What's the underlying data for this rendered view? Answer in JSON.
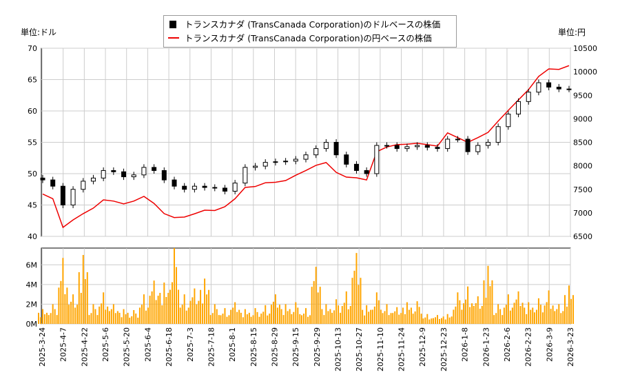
{
  "chart_data": {
    "type": "line",
    "left_unit": "単位:ドル",
    "right_unit": "単位:円",
    "legend": [
      "トランスカナダ (TransCanada Corporation)のドルベースの株価",
      "トランスカナダ (TransCanada Corporation)の円ベースの株価"
    ],
    "legend_placement": "top-center",
    "grid": true,
    "colors": {
      "usd": "#000000",
      "jpy": "#ee0000",
      "volume": "#ffa500"
    },
    "y_left": {
      "range": [
        40,
        70
      ],
      "ticks": [
        "40",
        "45",
        "50",
        "55",
        "60",
        "65",
        "70"
      ]
    },
    "y_right": {
      "range": [
        6500,
        10500
      ],
      "ticks": [
        "6500",
        "7000",
        "7500",
        "8000",
        "8500",
        "9000",
        "9500",
        "10000",
        "10500"
      ]
    },
    "y_volume": {
      "range": [
        0,
        7700000
      ],
      "ticks": [
        "0M",
        "2M",
        "4M",
        "6M"
      ]
    },
    "x_ticks": [
      "2025-3-24",
      "2025-4-7",
      "2025-4-22",
      "2025-5-6",
      "2025-5-20",
      "2025-6-4",
      "2025-6-18",
      "2025-7-3",
      "2025-7-18",
      "2025-8-1",
      "2025-8-15",
      "2025-8-29",
      "2025-9-15",
      "2025-9-29",
      "2025-10-13",
      "2025-10-27",
      "2025-11-10",
      "2025-11-24",
      "2025-12-9",
      "2025-12-23",
      "2026-1-8",
      "2026-1-23",
      "2026-2-6",
      "2026-2-23",
      "2026-3-9",
      "2026-3-23"
    ],
    "usd_close": [
      49,
      48,
      45,
      47.5,
      48.8,
      49.3,
      50.5,
      50.3,
      49.5,
      49.8,
      51,
      50.5,
      49,
      48,
      47.5,
      48,
      47.8,
      47.7,
      47.2,
      48.5,
      51,
      51.2,
      51.8,
      51.9,
      52,
      52.3,
      53,
      54,
      55,
      53,
      51.5,
      50.5,
      50,
      54.5,
      54.5,
      54,
      54.3,
      54.5,
      54.2,
      54,
      55.5,
      55.5,
      53.5,
      54.5,
      55,
      57.5,
      59.5,
      61.5,
      63,
      64.5,
      63.8,
      63.5,
      63.5
    ],
    "jpy_close": [
      7400,
      7300,
      6690,
      6850,
      6983,
      7100,
      7276,
      7250,
      7190,
      7250,
      7350,
      7200,
      6983,
      6900,
      6910,
      6980,
      7057,
      7050,
      7130,
      7300,
      7540,
      7560,
      7640,
      7650,
      7687,
      7800,
      7900,
      8010,
      8070,
      7860,
      7760,
      7745,
      7700,
      8300,
      8400,
      8450,
      8460,
      8480,
      8450,
      8420,
      8700,
      8600,
      8500,
      8600,
      8710,
      8950,
      9180,
      9400,
      9620,
      9900,
      10060,
      10050,
      10130
    ],
    "volume_millions": [
      1.5,
      2.0,
      6.7,
      3.0,
      7.0,
      2.0,
      3.2,
      2.0,
      1.5,
      1.4,
      3.0,
      4.4,
      4.2,
      7.7,
      3.0,
      3.6,
      4.6,
      2.0,
      1.6,
      2.2,
      1.5,
      1.6,
      1.9,
      3.0,
      2.0,
      2.2,
      1.6,
      5.8,
      2.0,
      2.5,
      3.3,
      7.2,
      1.9,
      3.2,
      2.0,
      1.7,
      2.2,
      2.3,
      1.0,
      0.9,
      1.0,
      3.2,
      3.8,
      2.8,
      5.9,
      2.0,
      3.0,
      3.3,
      2.2,
      2.6,
      3.4,
      2.0,
      3.9
    ]
  }
}
